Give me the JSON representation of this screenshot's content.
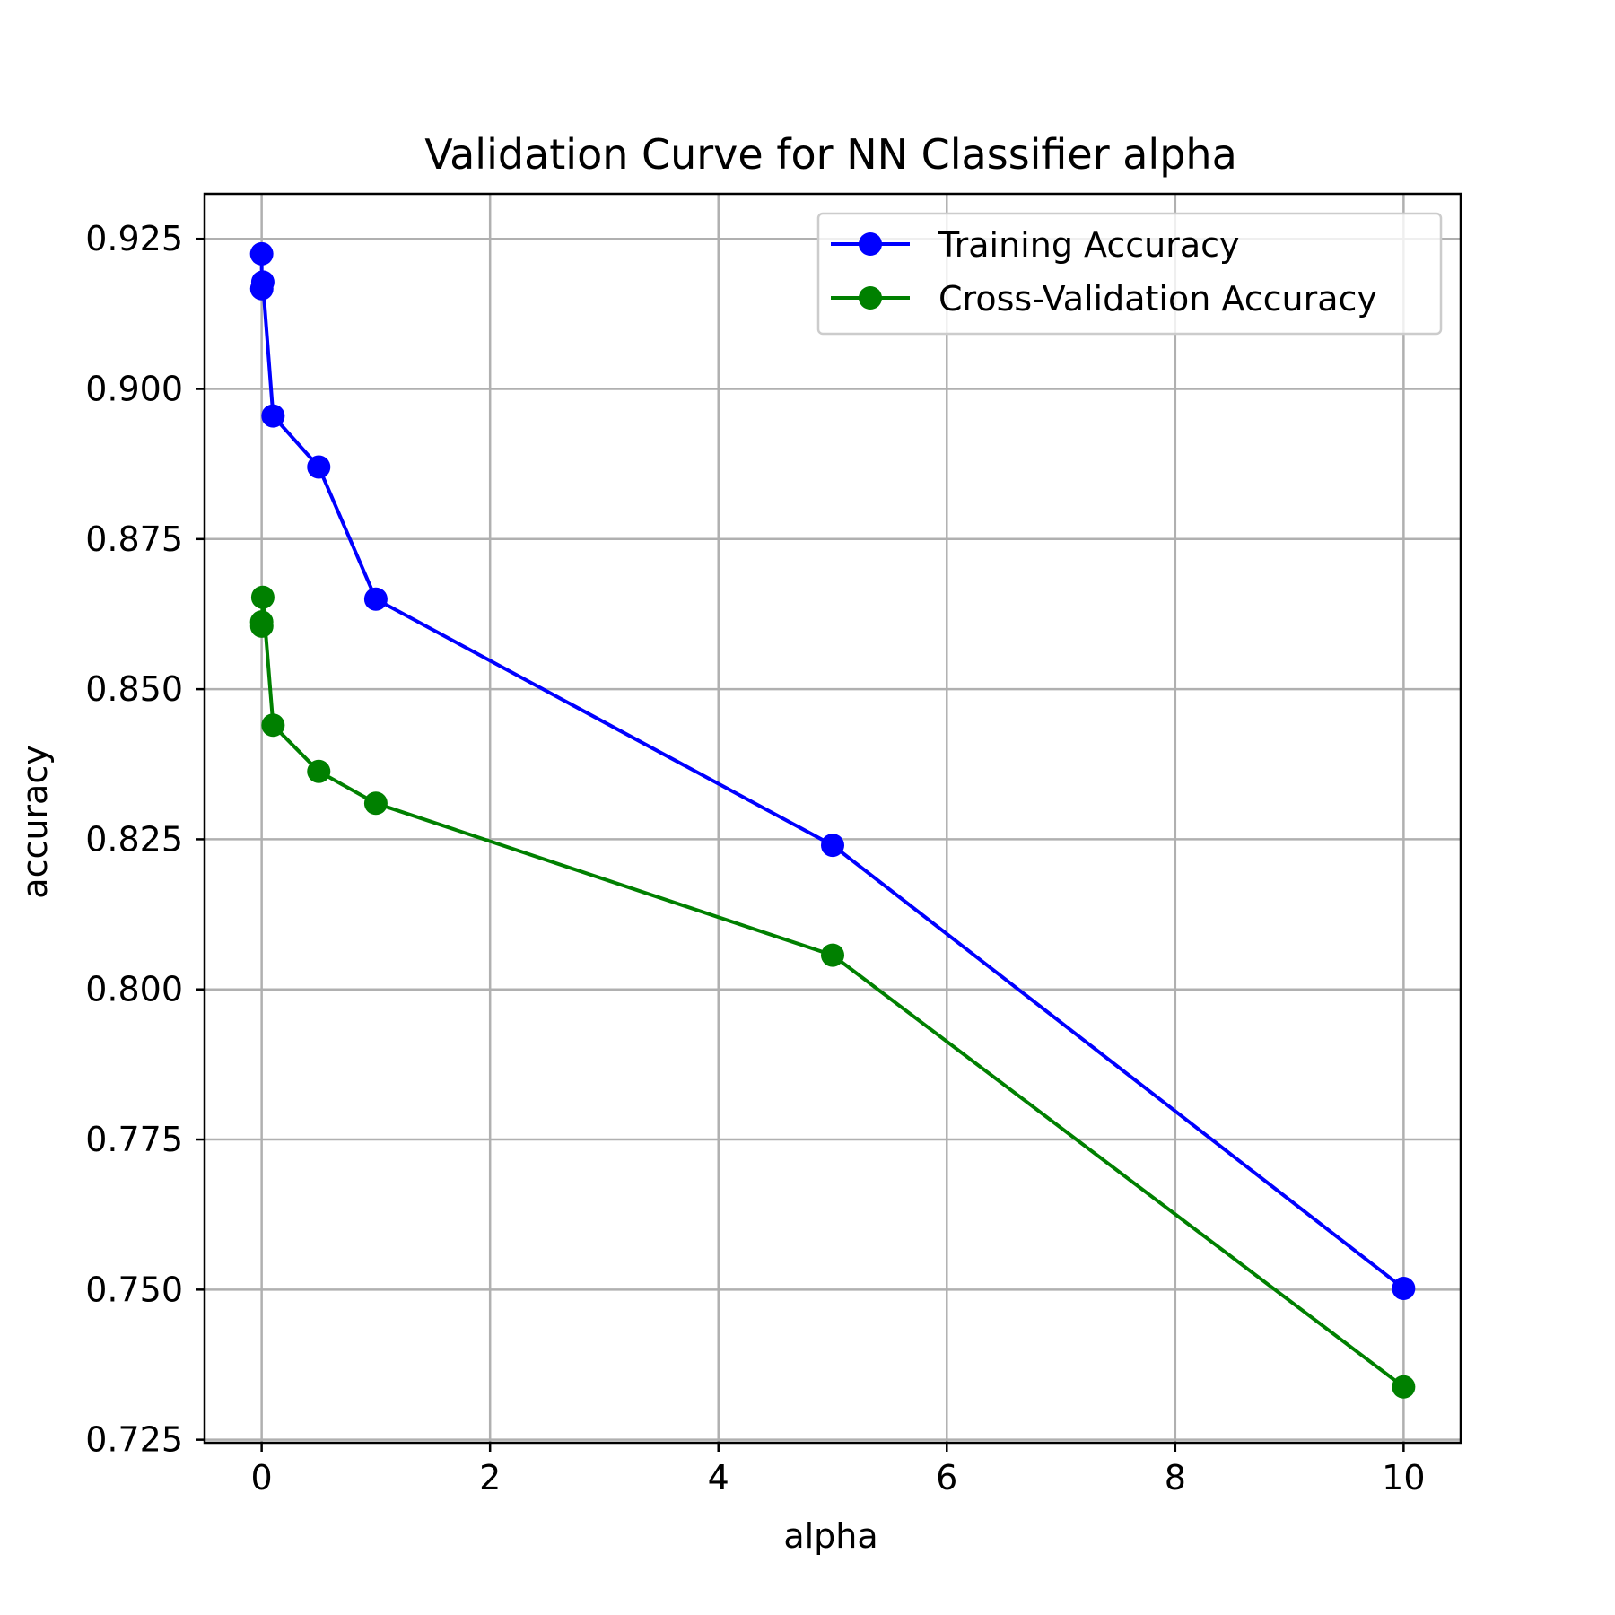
{
  "chart_data": {
    "type": "line",
    "title": "Validation Curve for NN Classifier alpha",
    "xlabel": "alpha",
    "ylabel": "accuracy",
    "xlim": [
      -0.5,
      10.5
    ],
    "ylim": [
      0.7245,
      0.9325
    ],
    "xticks": [
      0,
      2,
      4,
      6,
      8,
      10
    ],
    "xtick_labels": [
      "0",
      "2",
      "4",
      "6",
      "8",
      "10"
    ],
    "yticks": [
      0.725,
      0.75,
      0.775,
      0.8,
      0.825,
      0.85,
      0.875,
      0.9,
      0.925
    ],
    "ytick_labels": [
      "0.725",
      "0.750",
      "0.775",
      "0.800",
      "0.825",
      "0.850",
      "0.875",
      "0.900",
      "0.925"
    ],
    "grid": true,
    "legend_position": "top-right",
    "series": [
      {
        "name": "Training Accuracy",
        "color": "#0000ff",
        "marker": "circle",
        "x": [
          0.0001,
          0.001,
          0.01,
          0.1,
          0.5,
          1,
          5,
          10
        ],
        "y": [
          0.9225,
          0.9167,
          0.9178,
          0.8955,
          0.887,
          0.865,
          0.824,
          0.7502
        ]
      },
      {
        "name": "Cross-Validation Accuracy",
        "color": "#008000",
        "marker": "circle",
        "x": [
          0.0001,
          0.001,
          0.01,
          0.1,
          0.5,
          1,
          5,
          10
        ],
        "y": [
          0.8612,
          0.8605,
          0.8653,
          0.844,
          0.8363,
          0.831,
          0.8057,
          0.7338
        ]
      }
    ]
  }
}
